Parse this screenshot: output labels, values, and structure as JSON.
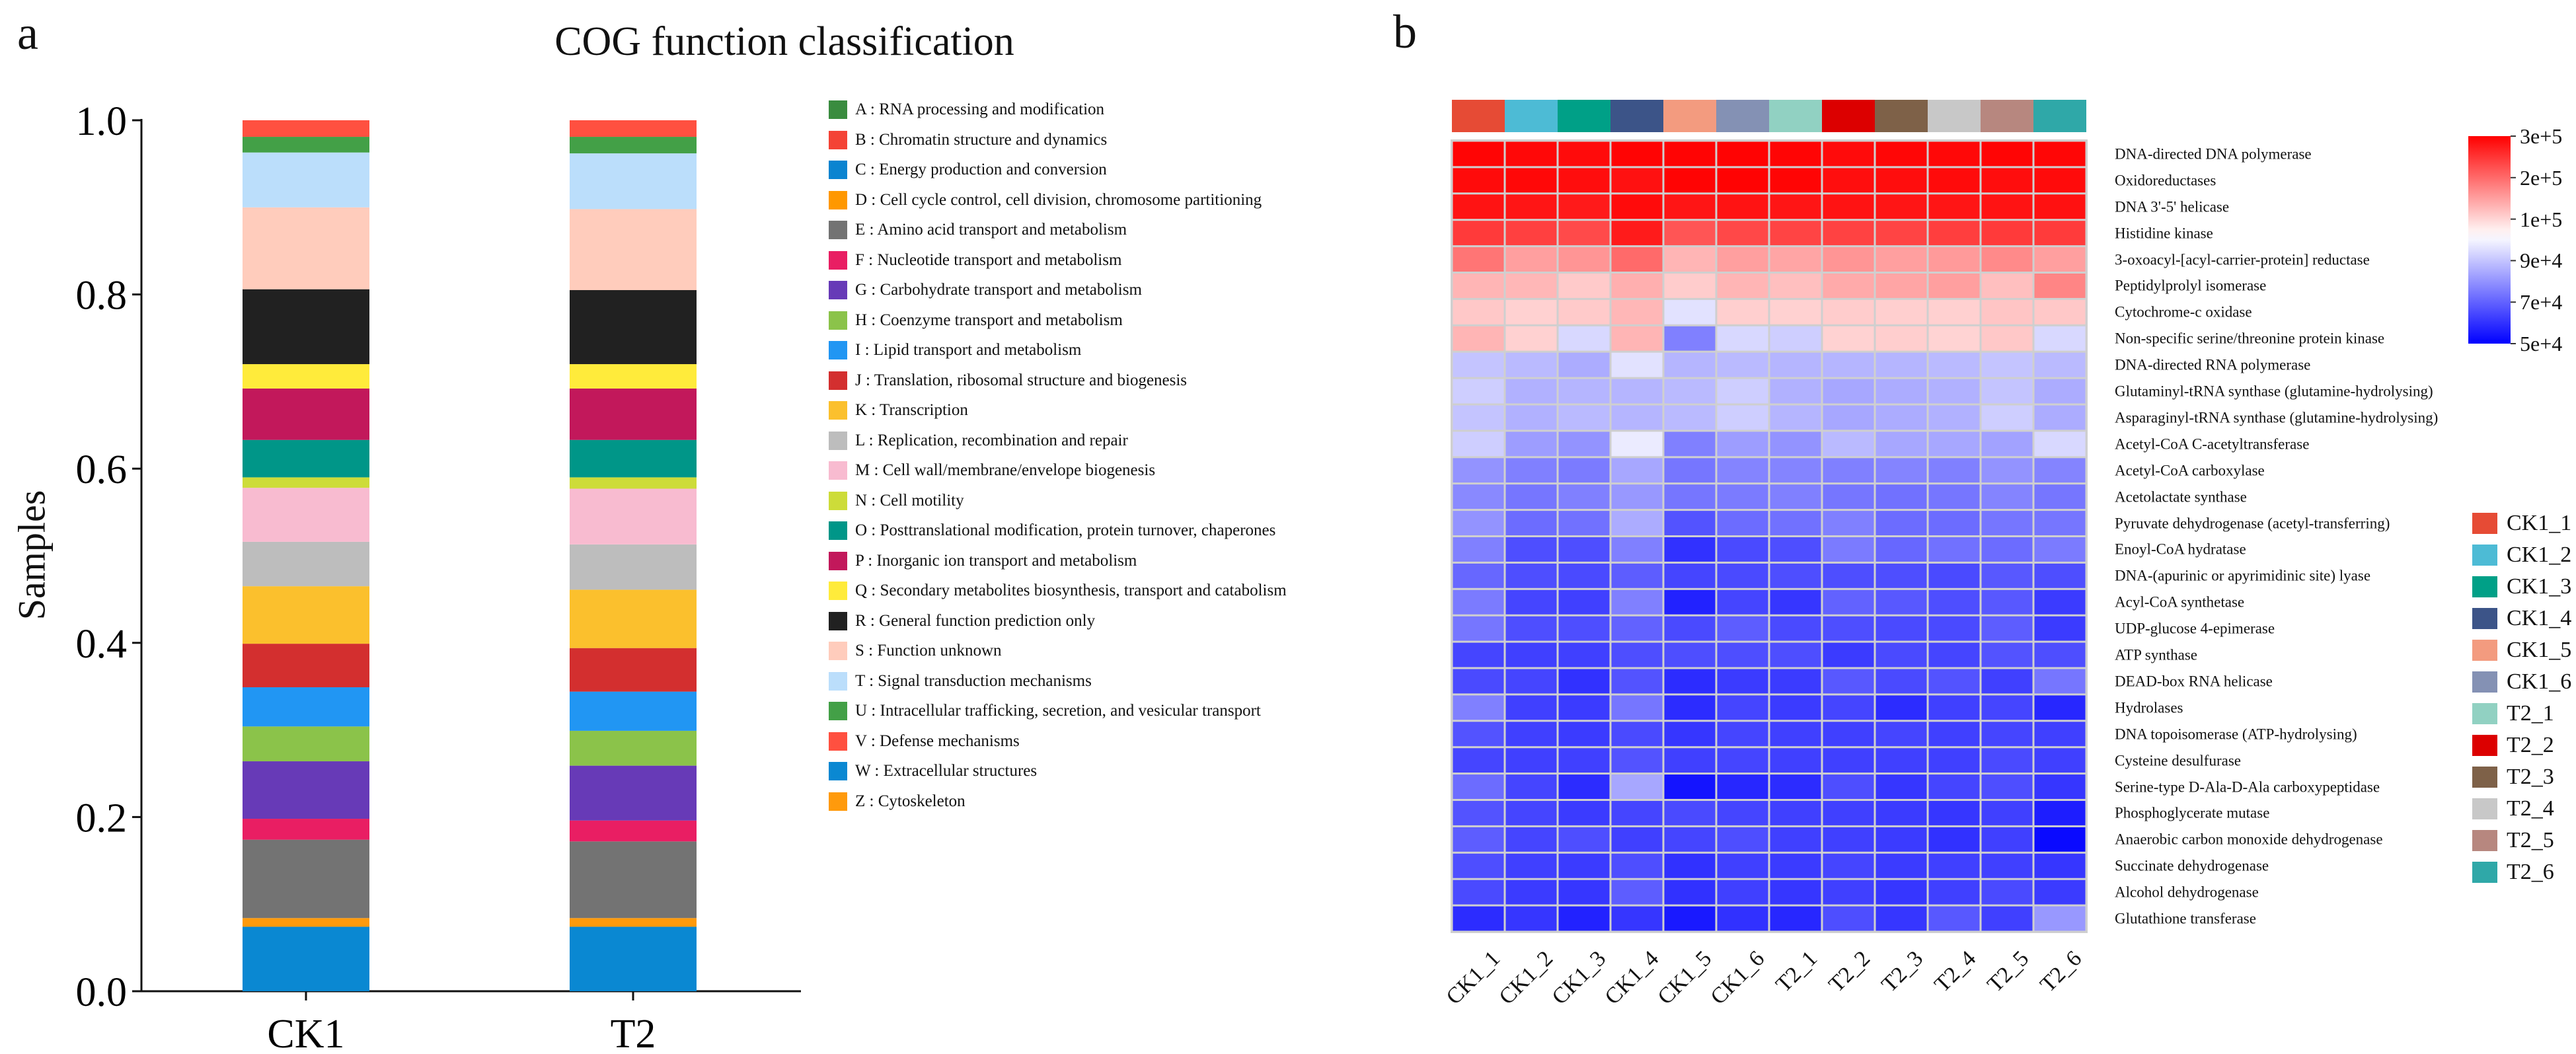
{
  "panel_a": {
    "letter": "a"
  },
  "panel_b": {
    "letter": "b"
  },
  "chart_data": [
    {
      "type": "bar",
      "stacked": true,
      "title": "COG function classification",
      "xlabel": "",
      "ylabel": "Samples",
      "ylim": [
        0,
        1.0
      ],
      "yticks": [
        "0.0",
        "0.2",
        "0.4",
        "0.6",
        "0.8",
        "1.0"
      ],
      "ytick_values": [
        0,
        0.2,
        0.4,
        0.6,
        0.8,
        1.0
      ],
      "categories": [
        "CK1",
        "T2"
      ],
      "legend_position": "right",
      "stack_order_bottom_to_top": [
        "W",
        "Z",
        "E",
        "F",
        "G",
        "H",
        "I",
        "J",
        "K",
        "L",
        "M",
        "N",
        "O",
        "P",
        "Q",
        "R",
        "S",
        "T",
        "U",
        "V"
      ],
      "series": [
        {
          "code": "A",
          "name": "A : RNA processing and modification",
          "color": "#3a8c3f",
          "values": [
            0.0,
            0.0
          ]
        },
        {
          "code": "B",
          "name": "B : Chromatin structure and dynamics",
          "color": "#f44336",
          "values": [
            0.0,
            0.0
          ]
        },
        {
          "code": "C",
          "name": "C : Energy production and conversion",
          "color": "#0a84d0",
          "values": [
            0.0,
            0.0
          ]
        },
        {
          "code": "D",
          "name": "D : Cell cycle control, cell division, chromosome partitioning",
          "color": "#ff9800",
          "values": [
            0.0,
            0.0
          ]
        },
        {
          "code": "E",
          "name": "E : Amino acid transport and metabolism",
          "color": "#737373",
          "values": [
            0.09,
            0.088
          ]
        },
        {
          "code": "F",
          "name": "F : Nucleotide transport and metabolism",
          "color": "#e91e63",
          "values": [
            0.024,
            0.024
          ]
        },
        {
          "code": "G",
          "name": "G : Carbohydrate transport and metabolism",
          "color": "#673ab7",
          "values": [
            0.066,
            0.063
          ]
        },
        {
          "code": "H",
          "name": "H : Coenzyme transport and metabolism",
          "color": "#8bc34a",
          "values": [
            0.04,
            0.04
          ]
        },
        {
          "code": "I",
          "name": "I : Lipid transport and metabolism",
          "color": "#2196f3",
          "values": [
            0.045,
            0.045
          ]
        },
        {
          "code": "J",
          "name": "J : Translation, ribosomal structure and biogenesis",
          "color": "#d32f2f",
          "values": [
            0.05,
            0.05
          ]
        },
        {
          "code": "K",
          "name": "K : Transcription",
          "color": "#fbc02d",
          "values": [
            0.066,
            0.067
          ]
        },
        {
          "code": "L",
          "name": "L : Replication, recombination and repair",
          "color": "#bdbdbd",
          "values": [
            0.051,
            0.052
          ]
        },
        {
          "code": "M",
          "name": "M : Cell wall/membrane/envelope biogenesis",
          "color": "#f8bbd0",
          "values": [
            0.062,
            0.064
          ]
        },
        {
          "code": "N",
          "name": "N : Cell motility",
          "color": "#cddc39",
          "values": [
            0.012,
            0.013
          ]
        },
        {
          "code": "O",
          "name": "O : Posttranslational modification, protein turnover, chaperones",
          "color": "#009688",
          "values": [
            0.043,
            0.043
          ]
        },
        {
          "code": "P",
          "name": "P : Inorganic ion transport and metabolism",
          "color": "#c2185b",
          "values": [
            0.059,
            0.059
          ]
        },
        {
          "code": "Q",
          "name": "Q : Secondary metabolites biosynthesis, transport and catabolism",
          "color": "#ffeb3b",
          "values": [
            0.028,
            0.028
          ]
        },
        {
          "code": "R",
          "name": "R : General function prediction only",
          "color": "#212121",
          "values": [
            0.086,
            0.085
          ]
        },
        {
          "code": "S",
          "name": "S : Function unknown",
          "color": "#ffccbc",
          "values": [
            0.094,
            0.093
          ]
        },
        {
          "code": "T",
          "name": "T : Signal transduction mechanisms",
          "color": "#bbdefb",
          "values": [
            0.063,
            0.064
          ]
        },
        {
          "code": "U",
          "name": "U : Intracellular trafficking, secretion, and vesicular transport",
          "color": "#43a047",
          "values": [
            0.018,
            0.019
          ]
        },
        {
          "code": "V",
          "name": "V : Defense mechanisms",
          "color": "#ff5040",
          "values": [
            0.019,
            0.019
          ]
        },
        {
          "code": "W",
          "name": "W : Extracellular structures",
          "color": "#0a88d2",
          "values": [
            0.074,
            0.074
          ]
        },
        {
          "code": "Z",
          "name": "Z : Cytoskeleton",
          "color": "#ff9a0c",
          "values": [
            0.01,
            0.01
          ]
        }
      ]
    },
    {
      "type": "heatmap",
      "title": "",
      "columns": [
        "CK1_1",
        "CK1_2",
        "CK1_3",
        "CK1_4",
        "CK1_5",
        "CK1_6",
        "T2_1",
        "T2_2",
        "T2_3",
        "T2_4",
        "T2_5",
        "T2_6"
      ],
      "column_colors": [
        "#e64b35",
        "#4dbbd5",
        "#00a087",
        "#3c5488",
        "#f39b7f",
        "#8491b4",
        "#91d1c2",
        "#dc0000",
        "#7e6148",
        "#c8c8c8",
        "#b7877f",
        "#2fa8a8"
      ],
      "rows": [
        "DNA-directed DNA polymerase",
        "Oxidoreductases",
        "DNA 3'-5' helicase",
        "Histidine kinase",
        "3-oxoacyl-[acyl-carrier-protein] reductase",
        "Peptidylprolyl isomerase",
        "Cytochrome-c oxidase",
        "Non-specific serine/threonine protein kinase",
        "DNA-directed RNA polymerase",
        "Glutaminyl-tRNA synthase (glutamine-hydrolysing)",
        "Asparaginyl-tRNA synthase (glutamine-hydrolysing)",
        "Acetyl-CoA C-acetyltransferase",
        "Acetyl-CoA carboxylase",
        "Acetolactate synthase",
        "Pyruvate dehydrogenase (acetyl-transferring)",
        "Enoyl-CoA hydratase",
        "DNA-(apurinic or apyrimidinic site) lyase",
        "Acyl-CoA synthetase",
        "UDP-glucose 4-epimerase",
        "ATP synthase",
        "DEAD-box RNA helicase",
        "Hydrolases",
        "DNA topoisomerase (ATP-hydrolysing)",
        "Cysteine desulfurase",
        "Serine-type D-Ala-D-Ala carboxypeptidase",
        "Phosphoglycerate mutase",
        "Anaerobic carbon monoxide dehydrogenase",
        "Succinate dehydrogenase",
        "Alcohol dehydrogenase",
        "Glutathione transferase"
      ],
      "values": [
        [
          295000,
          292000,
          290000,
          296000,
          296000,
          297000,
          295000,
          290000,
          294000,
          292000,
          295000,
          294000
        ],
        [
          290000,
          292000,
          288000,
          284000,
          296000,
          297000,
          295000,
          287000,
          288000,
          290000,
          288000,
          290000
        ],
        [
          282000,
          280000,
          276000,
          290000,
          280000,
          282000,
          280000,
          282000,
          280000,
          280000,
          282000,
          284000
        ],
        [
          245000,
          240000,
          230000,
          275000,
          220000,
          232000,
          236000,
          238000,
          236000,
          242000,
          245000,
          244000
        ],
        [
          190000,
          150000,
          160000,
          200000,
          130000,
          150000,
          145000,
          160000,
          150000,
          155000,
          170000,
          150000
        ],
        [
          130000,
          128000,
          110000,
          135000,
          108000,
          130000,
          120000,
          140000,
          145000,
          150000,
          120000,
          175000
        ],
        [
          112000,
          103000,
          110000,
          128000,
          93000,
          105000,
          103000,
          108000,
          105000,
          104000,
          115000,
          112000
        ],
        [
          130000,
          103000,
          92000,
          130000,
          76000,
          92000,
          91000,
          102000,
          106000,
          101000,
          112000,
          92000
        ],
        [
          90000,
          88000,
          85000,
          93000,
          87000,
          88000,
          87000,
          87000,
          87000,
          88000,
          90000,
          88000
        ],
        [
          91000,
          86000,
          87000,
          87000,
          88000,
          91000,
          86000,
          84000,
          85000,
          86000,
          90000,
          85000
        ],
        [
          90000,
          86000,
          88000,
          87000,
          88000,
          91000,
          87000,
          84000,
          85000,
          86000,
          91000,
          85000
        ],
        [
          91000,
          82000,
          80000,
          94000,
          76000,
          82000,
          80000,
          88000,
          84000,
          84000,
          83000,
          92000
        ],
        [
          80000,
          76000,
          75000,
          84000,
          74000,
          77000,
          77000,
          76000,
          77000,
          76000,
          80000,
          77000
        ],
        [
          78000,
          74000,
          76000,
          81000,
          74000,
          75000,
          76000,
          74000,
          73000,
          74000,
          77000,
          74000
        ],
        [
          80000,
          72000,
          73000,
          85000,
          67000,
          72000,
          73000,
          76000,
          72000,
          72000,
          74000,
          74000
        ],
        [
          76000,
          66000,
          66000,
          76000,
          60000,
          65000,
          66000,
          75000,
          71000,
          73000,
          72000,
          75000
        ],
        [
          71000,
          66000,
          65000,
          69000,
          64000,
          65000,
          66000,
          66000,
          66000,
          65000,
          68000,
          66000
        ],
        [
          75000,
          64000,
          63000,
          76000,
          57000,
          64000,
          61000,
          70000,
          68000,
          66000,
          68000,
          62000
        ],
        [
          74000,
          66000,
          66000,
          70000,
          65000,
          69000,
          65000,
          66000,
          65000,
          65000,
          69000,
          62000
        ],
        [
          64000,
          63000,
          63000,
          66000,
          66000,
          66000,
          66000,
          62000,
          65000,
          64000,
          67000,
          66000
        ],
        [
          65000,
          64000,
          60000,
          67000,
          59000,
          62000,
          62000,
          68000,
          65000,
          67000,
          63000,
          74000
        ],
        [
          76000,
          63000,
          62000,
          74000,
          59000,
          64000,
          62000,
          64000,
          59000,
          63000,
          64000,
          58000
        ],
        [
          67000,
          63000,
          62000,
          65000,
          61000,
          64000,
          63000,
          63000,
          64000,
          63000,
          64000,
          63000
        ],
        [
          64000,
          63000,
          63000,
          67000,
          63000,
          64000,
          63000,
          63000,
          63000,
          63000,
          65000,
          63000
        ],
        [
          72000,
          64000,
          59000,
          84000,
          54000,
          58000,
          59000,
          66000,
          61000,
          64000,
          66000,
          61000
        ],
        [
          67000,
          64000,
          62000,
          64000,
          65000,
          64000,
          63000,
          63000,
          62000,
          61000,
          63000,
          56000
        ],
        [
          69000,
          64000,
          66000,
          63000,
          64000,
          66000,
          63000,
          63000,
          62000,
          60000,
          63000,
          52000
        ],
        [
          66000,
          63000,
          62000,
          66000,
          60000,
          63000,
          62000,
          64000,
          62000,
          63000,
          63000,
          61000
        ],
        [
          65000,
          62000,
          61000,
          69000,
          60000,
          63000,
          61000,
          63000,
          61000,
          63000,
          65000,
          62000
        ],
        [
          59000,
          61000,
          57000,
          61000,
          55000,
          60000,
          58000,
          66000,
          61000,
          68000,
          63000,
          81000
        ]
      ],
      "colorbar": {
        "ticks": [
          "3e+5",
          "2e+5",
          "1e+5",
          "9e+4",
          "7e+4",
          "5e+4"
        ],
        "tick_values": [
          300000,
          200000,
          100000,
          90000,
          70000,
          50000
        ],
        "low_color": "#0000ff",
        "mid_color": "#ffffff",
        "high_color": "#ff0000",
        "range": [
          50000,
          300000
        ]
      },
      "legend_position": "right"
    }
  ]
}
